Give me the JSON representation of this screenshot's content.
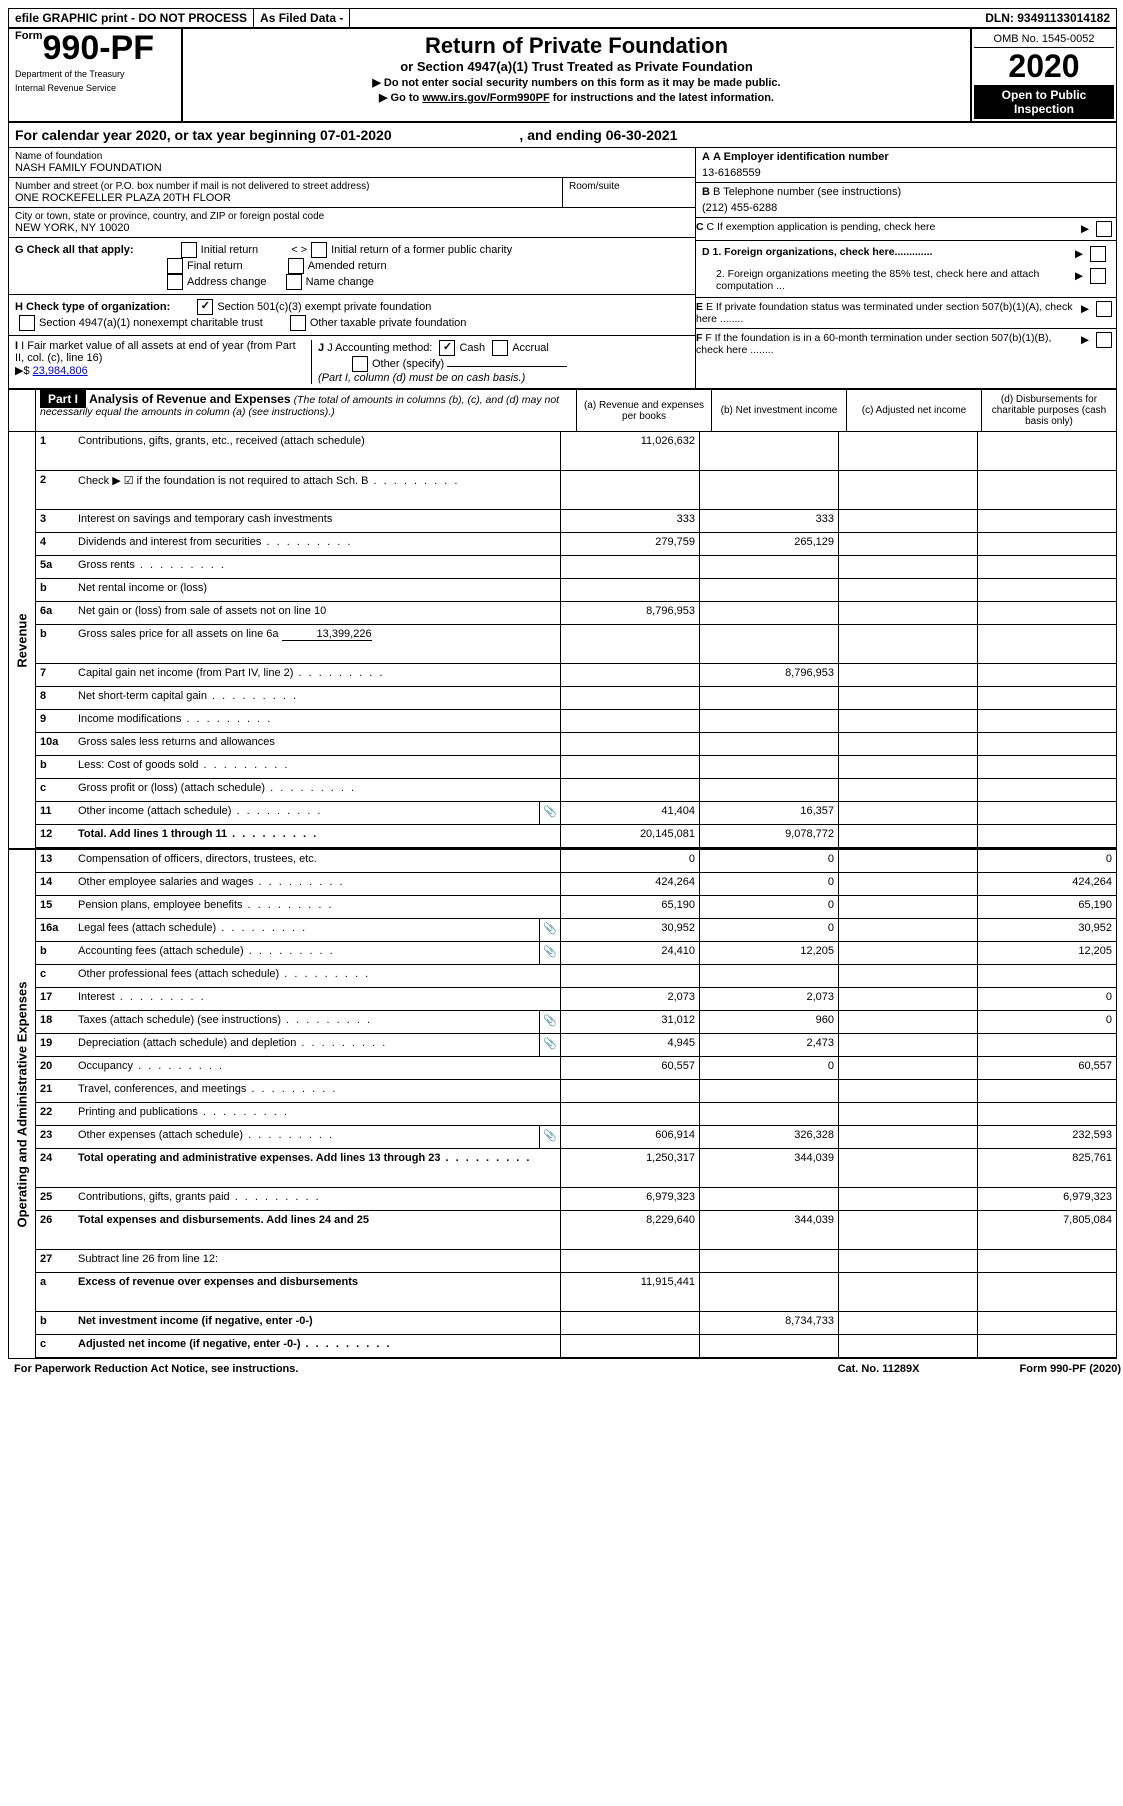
{
  "topbar": {
    "efile": "efile GRAPHIC print - DO NOT PROCESS",
    "asfiled": "As Filed Data -",
    "dln": "DLN: 93491133014182"
  },
  "header": {
    "form_prefix": "Form",
    "form_number": "990-PF",
    "dept1": "Department of the Treasury",
    "dept2": "Internal Revenue Service",
    "title": "Return of Private Foundation",
    "subtitle": "or Section 4947(a)(1) Trust Treated as Private Foundation",
    "inst1": "Do not enter social security numbers on this form as it may be made public.",
    "inst2_pre": "Go to ",
    "inst2_link": "www.irs.gov/Form990PF",
    "inst2_post": " for instructions and the latest information.",
    "omb": "OMB No. 1545-0052",
    "year": "2020",
    "inspection": "Open to Public Inspection"
  },
  "calendar": {
    "text_pre": "For calendar year 2020, or tax year beginning ",
    "begin": "07-01-2020",
    "text_mid": ", and ending ",
    "end": "06-30-2021"
  },
  "info": {
    "name_label": "Name of foundation",
    "name": "NASH FAMILY FOUNDATION",
    "addr_label": "Number and street (or P.O. box number if mail is not delivered to street address)",
    "addr": "ONE ROCKEFELLER PLAZA 20TH FLOOR",
    "room_label": "Room/suite",
    "city_label": "City or town, state or province, country, and ZIP or foreign postal code",
    "city": "NEW YORK, NY  10020",
    "a_label": "A Employer identification number",
    "a_value": "13-6168559",
    "b_label": "B Telephone number (see instructions)",
    "b_value": "(212) 455-6288",
    "c_label": "C If exemption application is pending, check here",
    "g_label": "G Check all that apply:",
    "g_opts": [
      "Initial return",
      "Initial return of a former public charity",
      "Final return",
      "Amended return",
      "Address change",
      "Name change"
    ],
    "h_label": "H Check type of organization:",
    "h_501": "Section 501(c)(3) exempt private foundation",
    "h_4947": "Section 4947(a)(1) nonexempt charitable trust",
    "h_other": "Other taxable private foundation",
    "d1": "D 1. Foreign organizations, check here.............",
    "d2": "2. Foreign organizations meeting the 85% test, check here and attach computation ...",
    "e": "E  If private foundation status was terminated under section 507(b)(1)(A), check here ........",
    "f": "F  If the foundation is in a 60-month termination under section 507(b)(1)(B), check here ........",
    "i_label": "I Fair market value of all assets at end of year (from Part II, col. (c), line 16)",
    "i_arrow": "▶$ ",
    "i_value": "23,984,806",
    "j_label": "J Accounting method:",
    "j_cash": "Cash",
    "j_accrual": "Accrual",
    "j_other": "Other (specify)",
    "j_note": "(Part I, column (d) must be on cash basis.)"
  },
  "part1": {
    "label": "Part I",
    "title": "Analysis of Revenue and Expenses",
    "note": "(The total of amounts in columns (b), (c), and (d) may not necessarily equal the amounts in column (a) (see instructions).)",
    "cols": {
      "a": "(a)  Revenue and expenses per books",
      "b": "(b)  Net investment income",
      "c": "(c)  Adjusted net income",
      "d": "(d)  Disbursements for charitable purposes (cash basis only)"
    }
  },
  "side_labels": {
    "revenue": "Revenue",
    "expenses": "Operating and Administrative Expenses"
  },
  "rows": [
    {
      "n": "1",
      "desc": "Contributions, gifts, grants, etc., received (attach schedule)",
      "a": "11,026,632",
      "tall": true
    },
    {
      "n": "2",
      "desc": "Check ▶ ☑ if the foundation is not required to attach Sch. B",
      "dots": true,
      "noborder_cells": true,
      "tall": true
    },
    {
      "n": "3",
      "desc": "Interest on savings and temporary cash investments",
      "a": "333",
      "b": "333"
    },
    {
      "n": "4",
      "desc": "Dividends and interest from securities",
      "dots": true,
      "a": "279,759",
      "b": "265,129"
    },
    {
      "n": "5a",
      "desc": "Gross rents",
      "dots": true
    },
    {
      "n": "b",
      "desc": "Net rental income or (loss)"
    },
    {
      "n": "6a",
      "desc": "Net gain or (loss) from sale of assets not on line 10",
      "a": "8,796,953"
    },
    {
      "n": "b",
      "desc": "Gross sales price for all assets on line 6a",
      "inline_val": "13,399,226",
      "tall": true
    },
    {
      "n": "7",
      "desc": "Capital gain net income (from Part IV, line 2)",
      "dots": true,
      "b": "8,796,953"
    },
    {
      "n": "8",
      "desc": "Net short-term capital gain",
      "dots": true
    },
    {
      "n": "9",
      "desc": "Income modifications",
      "dots": true
    },
    {
      "n": "10a",
      "desc": "Gross sales less returns and allowances"
    },
    {
      "n": "b",
      "desc": "Less: Cost of goods sold",
      "dots": true
    },
    {
      "n": "c",
      "desc": "Gross profit or (loss) (attach schedule)",
      "dots": true
    },
    {
      "n": "11",
      "desc": "Other income (attach schedule)",
      "dots": true,
      "icon": true,
      "a": "41,404",
      "b": "16,357"
    },
    {
      "n": "12",
      "desc": "Total. Add lines 1 through 11",
      "dots": true,
      "bold": true,
      "a": "20,145,081",
      "b": "9,078,772"
    }
  ],
  "exp_rows": [
    {
      "n": "13",
      "desc": "Compensation of officers, directors, trustees, etc.",
      "a": "0",
      "b": "0",
      "d": "0"
    },
    {
      "n": "14",
      "desc": "Other employee salaries and wages",
      "dots": true,
      "a": "424,264",
      "b": "0",
      "d": "424,264"
    },
    {
      "n": "15",
      "desc": "Pension plans, employee benefits",
      "dots": true,
      "a": "65,190",
      "b": "0",
      "d": "65,190"
    },
    {
      "n": "16a",
      "desc": "Legal fees (attach schedule)",
      "dots": true,
      "icon": true,
      "a": "30,952",
      "b": "0",
      "d": "30,952"
    },
    {
      "n": "b",
      "desc": "Accounting fees (attach schedule)",
      "dots": true,
      "icon": true,
      "a": "24,410",
      "b": "12,205",
      "d": "12,205"
    },
    {
      "n": "c",
      "desc": "Other professional fees (attach schedule)",
      "dots": true
    },
    {
      "n": "17",
      "desc": "Interest",
      "dots": true,
      "a": "2,073",
      "b": "2,073",
      "d": "0"
    },
    {
      "n": "18",
      "desc": "Taxes (attach schedule) (see instructions)",
      "dots": true,
      "icon": true,
      "a": "31,012",
      "b": "960",
      "d": "0"
    },
    {
      "n": "19",
      "desc": "Depreciation (attach schedule) and depletion",
      "dots": true,
      "icon": true,
      "a": "4,945",
      "b": "2,473"
    },
    {
      "n": "20",
      "desc": "Occupancy",
      "dots": true,
      "a": "60,557",
      "b": "0",
      "d": "60,557"
    },
    {
      "n": "21",
      "desc": "Travel, conferences, and meetings",
      "dots": true
    },
    {
      "n": "22",
      "desc": "Printing and publications",
      "dots": true
    },
    {
      "n": "23",
      "desc": "Other expenses (attach schedule)",
      "dots": true,
      "icon": true,
      "a": "606,914",
      "b": "326,328",
      "d": "232,593"
    },
    {
      "n": "24",
      "desc": "Total operating and administrative expenses. Add lines 13 through 23",
      "dots": true,
      "bold": true,
      "a": "1,250,317",
      "b": "344,039",
      "d": "825,761",
      "tall": true
    },
    {
      "n": "25",
      "desc": "Contributions, gifts, grants paid",
      "dots": true,
      "a": "6,979,323",
      "d": "6,979,323"
    },
    {
      "n": "26",
      "desc": "Total expenses and disbursements. Add lines 24 and 25",
      "bold": true,
      "a": "8,229,640",
      "b": "344,039",
      "d": "7,805,084",
      "tall": true
    },
    {
      "n": "27",
      "desc": "Subtract line 26 from line 12:"
    },
    {
      "n": "a",
      "desc": "Excess of revenue over expenses and disbursements",
      "bold": true,
      "a": "11,915,441",
      "tall": true
    },
    {
      "n": "b",
      "desc": "Net investment income (if negative, enter -0-)",
      "bold": true,
      "b": "8,734,733"
    },
    {
      "n": "c",
      "desc": "Adjusted net income (if negative, enter -0-)",
      "bold": true,
      "dots": true
    }
  ],
  "footer": {
    "left": "For Paperwork Reduction Act Notice, see instructions.",
    "mid": "Cat. No. 11289X",
    "right": "Form 990-PF (2020)"
  }
}
